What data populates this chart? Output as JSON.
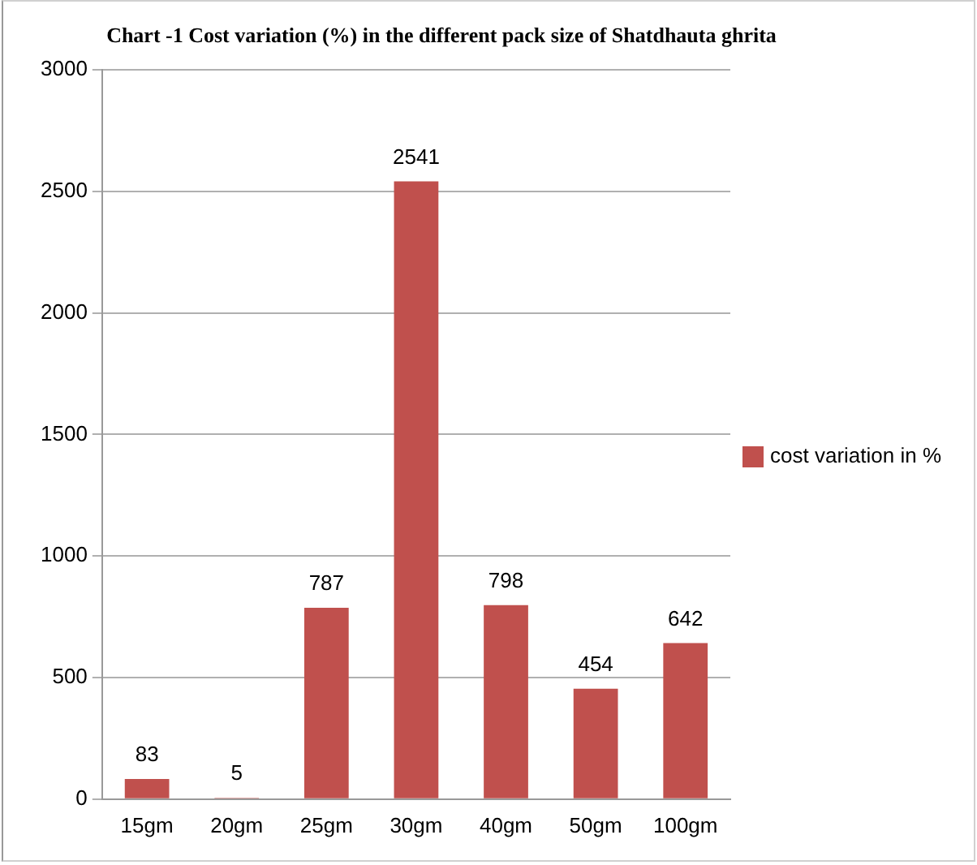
{
  "chart_data": {
    "type": "bar",
    "title": "Chart  -1 Cost variation (%) in the different pack size of Shatdhauta ghrita",
    "categories": [
      "15gm",
      "20gm",
      "25gm",
      "30gm",
      "40gm",
      "50gm",
      "100gm"
    ],
    "series": [
      {
        "name": "cost variation in %",
        "color": "#c0504d",
        "values": [
          83,
          5,
          787,
          2541,
          798,
          454,
          642
        ]
      }
    ],
    "ylim": [
      0,
      3000
    ],
    "yticks": [
      0,
      500,
      1000,
      1500,
      2000,
      2500,
      3000
    ],
    "grid": "y",
    "legend": "right",
    "data_labels": true
  }
}
